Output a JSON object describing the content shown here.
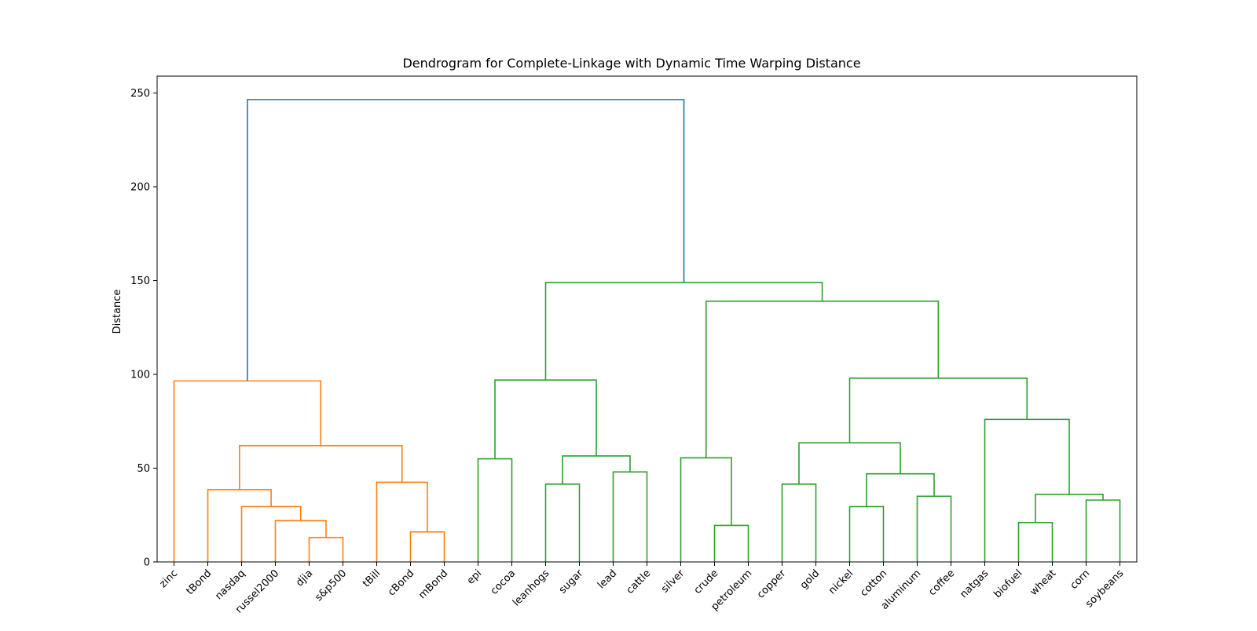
{
  "chart_data": {
    "type": "dendrogram",
    "title": "Dendrogram for Complete-Linkage with Dynamic Time Warping Distance",
    "xlabel": "",
    "ylabel": "Distance",
    "ylim": [
      0,
      259
    ],
    "yticks": [
      0,
      50,
      100,
      150,
      200,
      250
    ],
    "grid": false,
    "leaves": [
      "zinc",
      "tBond",
      "nasdaq",
      "russel2000",
      "djia",
      "s&p500",
      "tBill",
      "cBond",
      "mBond",
      "epi",
      "cocoa",
      "leanhogs",
      "sugar",
      "lead",
      "cattle",
      "silver",
      "crude",
      "petroleum",
      "copper",
      "gold",
      "nickel",
      "cotton",
      "aluminum",
      "coffee",
      "natgas",
      "biofuel",
      "wheat",
      "corn",
      "soybeans"
    ],
    "colors": {
      "orange": "#ff7f0e",
      "green": "#2ca02c",
      "blue": "#1f77b4"
    },
    "merges": [
      {
        "left": "djia",
        "right": "s&p500",
        "height": 13,
        "color": "orange"
      },
      {
        "left": "russel2000",
        "right": 0,
        "height": 22,
        "color": "orange"
      },
      {
        "left": "nasdaq",
        "right": 1,
        "height": 29.5,
        "color": "orange"
      },
      {
        "left": "tBond",
        "right": 2,
        "height": 38.5,
        "color": "orange"
      },
      {
        "left": "cBond",
        "right": "mBond",
        "height": 16,
        "color": "orange"
      },
      {
        "left": "tBill",
        "right": 4,
        "height": 42.5,
        "color": "orange"
      },
      {
        "left": 3,
        "right": 5,
        "height": 62,
        "color": "orange"
      },
      {
        "left": "zinc",
        "right": 6,
        "height": 96.5,
        "color": "orange"
      },
      {
        "left": "epi",
        "right": "cocoa",
        "height": 55,
        "color": "green"
      },
      {
        "left": "leanhogs",
        "right": "sugar",
        "height": 41.5,
        "color": "green"
      },
      {
        "left": "lead",
        "right": "cattle",
        "height": 48,
        "color": "green"
      },
      {
        "left": 9,
        "right": 10,
        "height": 56.5,
        "color": "green"
      },
      {
        "left": 8,
        "right": 11,
        "height": 97,
        "color": "green"
      },
      {
        "left": "crude",
        "right": "petroleum",
        "height": 19.5,
        "color": "green"
      },
      {
        "left": "silver",
        "right": 13,
        "height": 55.5,
        "color": "green"
      },
      {
        "left": "copper",
        "right": "gold",
        "height": 41.5,
        "color": "green"
      },
      {
        "left": "nickel",
        "right": "cotton",
        "height": 29.5,
        "color": "green"
      },
      {
        "left": "aluminum",
        "right": "coffee",
        "height": 35,
        "color": "green"
      },
      {
        "left": 16,
        "right": 17,
        "height": 47,
        "color": "green"
      },
      {
        "left": 15,
        "right": 18,
        "height": 63.5,
        "color": "green"
      },
      {
        "left": "biofuel",
        "right": "wheat",
        "height": 21,
        "color": "green"
      },
      {
        "left": "corn",
        "right": "soybeans",
        "height": 33,
        "color": "green"
      },
      {
        "left": 20,
        "right": 21,
        "height": 36,
        "color": "green"
      },
      {
        "left": "natgas",
        "right": 22,
        "height": 76,
        "color": "green"
      },
      {
        "left": 19,
        "right": 23,
        "height": 98,
        "color": "green"
      },
      {
        "left": 14,
        "right": 24,
        "height": 139,
        "color": "green"
      },
      {
        "left": 12,
        "right": 25,
        "height": 149,
        "color": "green"
      },
      {
        "left": 7,
        "right": 26,
        "height": 246.5,
        "color": "blue"
      }
    ]
  }
}
